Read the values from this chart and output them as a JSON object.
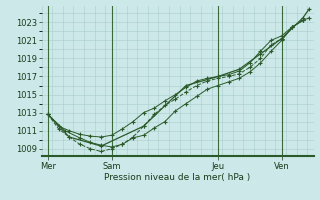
{
  "background_color": "#cce8e8",
  "plot_bg_color": "#cce8e8",
  "grid_color": "#aacccc",
  "line_color": "#2a5a2a",
  "title": "Pression niveau de la mer( hPa )",
  "xtick_labels": [
    "Mer",
    "Sam",
    "Jeu",
    "Ven"
  ],
  "xtick_positions": [
    0,
    3,
    8,
    11
  ],
  "xlim": [
    -0.3,
    12.5
  ],
  "ylim": [
    1008.2,
    1024.8
  ],
  "yticks": [
    1009,
    1011,
    1013,
    1015,
    1017,
    1019,
    1021,
    1023
  ],
  "series1_x": [
    0,
    0.5,
    1.0,
    1.5,
    2.0,
    2.5,
    3.0,
    3.5,
    4.0,
    4.5,
    5.0,
    5.5,
    6.0,
    6.5,
    7.0,
    7.5,
    8.0,
    8.5,
    9.0,
    9.5,
    10.0,
    10.5,
    11.0,
    11.5,
    12.0
  ],
  "series1_y": [
    1012.8,
    1011.5,
    1011.0,
    1010.6,
    1010.4,
    1010.3,
    1010.5,
    1011.2,
    1012.0,
    1013.0,
    1013.5,
    1014.3,
    1015.0,
    1015.8,
    1016.5,
    1016.8,
    1017.0,
    1017.2,
    1017.6,
    1018.5,
    1019.8,
    1021.0,
    1021.5,
    1022.5,
    1023.2
  ],
  "series2_x": [
    0,
    0.5,
    1.0,
    1.5,
    2.0,
    2.5,
    3.0,
    3.5,
    4.0,
    4.5,
    5.0,
    5.5,
    6.0,
    6.5,
    7.0,
    7.5,
    8.0,
    8.5,
    9.0,
    9.5,
    10.0,
    10.5,
    11.0,
    11.5,
    12.0
  ],
  "series2_y": [
    1012.8,
    1011.2,
    1010.3,
    1009.5,
    1009.0,
    1008.7,
    1009.0,
    1009.5,
    1010.3,
    1011.5,
    1012.8,
    1013.8,
    1014.5,
    1015.3,
    1016.0,
    1016.5,
    1016.8,
    1017.0,
    1017.3,
    1018.0,
    1019.0,
    1020.5,
    1021.2,
    1022.5,
    1023.2
  ],
  "series3_x": [
    0,
    0.8,
    1.5,
    2.0,
    2.5,
    3.0,
    3.5,
    4.0,
    4.5,
    5.0,
    5.5,
    6.0,
    6.5,
    7.0,
    7.5,
    8.0,
    8.5,
    9.0,
    9.5,
    10.0,
    10.5,
    11.0,
    11.5,
    12.0,
    12.3
  ],
  "series3_y": [
    1012.8,
    1011.0,
    1010.2,
    1009.7,
    1009.4,
    1009.2,
    1009.5,
    1010.2,
    1010.5,
    1011.3,
    1012.0,
    1013.2,
    1014.0,
    1014.8,
    1015.6,
    1016.0,
    1016.4,
    1016.8,
    1017.5,
    1018.5,
    1019.8,
    1021.0,
    1022.5,
    1023.2,
    1023.5
  ],
  "series4_x": [
    0,
    1.0,
    2.5,
    4.5,
    6.5,
    8.0,
    9.0,
    10.0,
    11.0,
    12.0,
    12.3
  ],
  "series4_y": [
    1012.8,
    1010.3,
    1009.3,
    1011.5,
    1016.0,
    1017.0,
    1017.8,
    1019.5,
    1021.2,
    1023.5,
    1024.5
  ]
}
